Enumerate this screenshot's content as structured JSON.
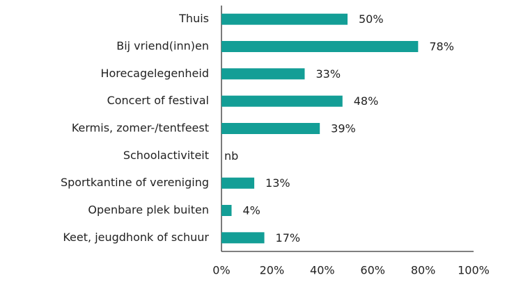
{
  "chart_data": {
    "type": "bar",
    "orientation": "horizontal",
    "categories": [
      "Thuis",
      "Bij vriend(inn)en",
      "Horecagelegenheid",
      "Concert of festival",
      "Kermis, zomer-/tentfeest",
      "Schoolactiviteit",
      "Sportkantine of vereniging",
      "Openbare plek buiten",
      "Keet, jeugdhonk of schuur"
    ],
    "values": [
      50,
      78,
      33,
      48,
      39,
      null,
      13,
      4,
      17
    ],
    "value_labels": [
      "50%",
      "78%",
      "33%",
      "48%",
      "39%",
      "nb",
      "13%",
      "4%",
      "17%"
    ],
    "color": "#139e96",
    "xlim": [
      0,
      100
    ],
    "xticks": [
      {
        "value": 0,
        "label": "0%"
      },
      {
        "value": 20,
        "label": "20%"
      },
      {
        "value": 40,
        "label": "40%"
      },
      {
        "value": 60,
        "label": "60%"
      },
      {
        "value": 80,
        "label": "80%"
      },
      {
        "value": 100,
        "label": "100%"
      }
    ],
    "grid": false
  }
}
